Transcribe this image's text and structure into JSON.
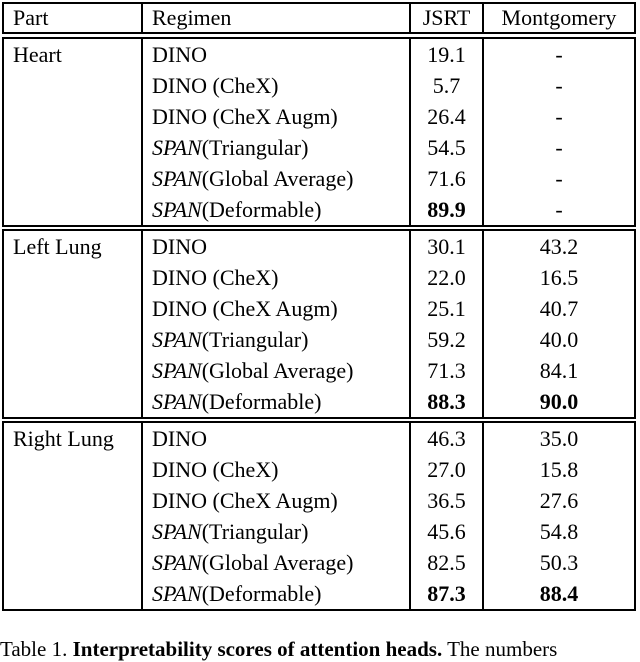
{
  "header": {
    "part": "Part",
    "regimen": "Regimen",
    "jsrt": "JSRT",
    "montgomery": "Montgomery"
  },
  "groups": [
    {
      "part": "Heart",
      "rows": [
        {
          "em": "",
          "rest": "DINO",
          "jsrt": "19.1",
          "mont": "-"
        },
        {
          "em": "",
          "rest": "DINO (CheX)",
          "jsrt": "5.7",
          "mont": "-"
        },
        {
          "em": "",
          "rest": "DINO (CheX Augm)",
          "jsrt": "26.4",
          "mont": "-"
        },
        {
          "em": "SPAN",
          "rest": " (Triangular)",
          "jsrt": "54.5",
          "mont": "-"
        },
        {
          "em": "SPAN",
          "rest": " (Global Average)",
          "jsrt": "71.6",
          "mont": "-"
        },
        {
          "em": "SPAN",
          "rest": " (Deformable)",
          "jsrt": "89.9",
          "mont": "-"
        }
      ]
    },
    {
      "part": "Left Lung",
      "rows": [
        {
          "em": "",
          "rest": "DINO",
          "jsrt": "30.1",
          "mont": "43.2"
        },
        {
          "em": "",
          "rest": "DINO (CheX)",
          "jsrt": "22.0",
          "mont": "16.5"
        },
        {
          "em": "",
          "rest": "DINO (CheX Augm)",
          "jsrt": "25.1",
          "mont": "40.7"
        },
        {
          "em": "SPAN",
          "rest": " (Triangular)",
          "jsrt": "59.2",
          "mont": "40.0"
        },
        {
          "em": "SPAN",
          "rest": " (Global Average)",
          "jsrt": "71.3",
          "mont": "84.1"
        },
        {
          "em": "SPAN",
          "rest": " (Deformable)",
          "jsrt": "88.3",
          "mont": "90.0"
        }
      ]
    },
    {
      "part": "Right Lung",
      "rows": [
        {
          "em": "",
          "rest": "DINO",
          "jsrt": "46.3",
          "mont": "35.0"
        },
        {
          "em": "",
          "rest": "DINO (CheX)",
          "jsrt": "27.0",
          "mont": "15.8"
        },
        {
          "em": "",
          "rest": "DINO (CheX Augm)",
          "jsrt": "36.5",
          "mont": "27.6"
        },
        {
          "em": "SPAN",
          "rest": " (Triangular)",
          "jsrt": "45.6",
          "mont": "54.8"
        },
        {
          "em": "SPAN",
          "rest": " (Global Average)",
          "jsrt": "82.5",
          "mont": "50.3"
        },
        {
          "em": "SPAN",
          "rest": " (Deformable)",
          "jsrt": "87.3",
          "mont": "88.4"
        }
      ]
    }
  ],
  "caption": {
    "label": "Table 1. ",
    "bold_text": "Interpretability scores of attention heads.",
    "tail": " The numbers"
  }
}
